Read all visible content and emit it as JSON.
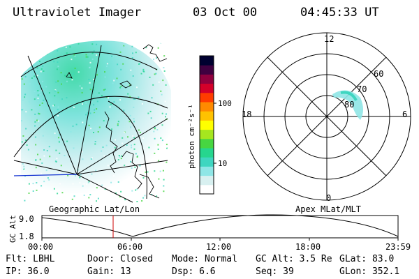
{
  "header": {
    "instrument": "Ultraviolet Imager",
    "date": "03 Oct 00",
    "time": "04:45:33 UT"
  },
  "colorbar": {
    "label": "photon cm⁻²s⁻¹",
    "ticks": [
      "100",
      "10"
    ],
    "scale": "log",
    "colors": [
      "#ffffff",
      "#d8f0f0",
      "#8fe6e6",
      "#3fd6c0",
      "#26d68e",
      "#47d641",
      "#a6e61f",
      "#ffff00",
      "#ffc200",
      "#ff8a00",
      "#ff3c00",
      "#d4002a",
      "#90003e",
      "#400040",
      "#000030"
    ]
  },
  "geo_map": {
    "title": "Geographic Lat/Lon"
  },
  "polar_plot": {
    "title": "Apex MLat/MLT",
    "mlt_labels": {
      "top": "12",
      "left": "18",
      "right": "6",
      "bottom": "0"
    },
    "lat_labels": [
      "60",
      "70",
      "80"
    ]
  },
  "orbit_plot": {
    "ylabel": "GC Alt",
    "yticks": [
      "9.0",
      "1.8"
    ],
    "xticks": [
      "00:00",
      "06:00",
      "12:00",
      "18:00",
      "23:59"
    ],
    "marker_color": "#cc0000"
  },
  "footer": {
    "flt": "Flt: LBHL",
    "door": "Door: Closed",
    "mode": "Mode: Normal",
    "gc_alt": "GC Alt: 3.5 Re",
    "glat": "GLat:  83.0",
    "ip": "IP: 36.0",
    "gain": "Gain: 13",
    "dsp": "Dsp:   6.6",
    "seq": "Seq: 39",
    "glon": "GLon: 352.1"
  }
}
